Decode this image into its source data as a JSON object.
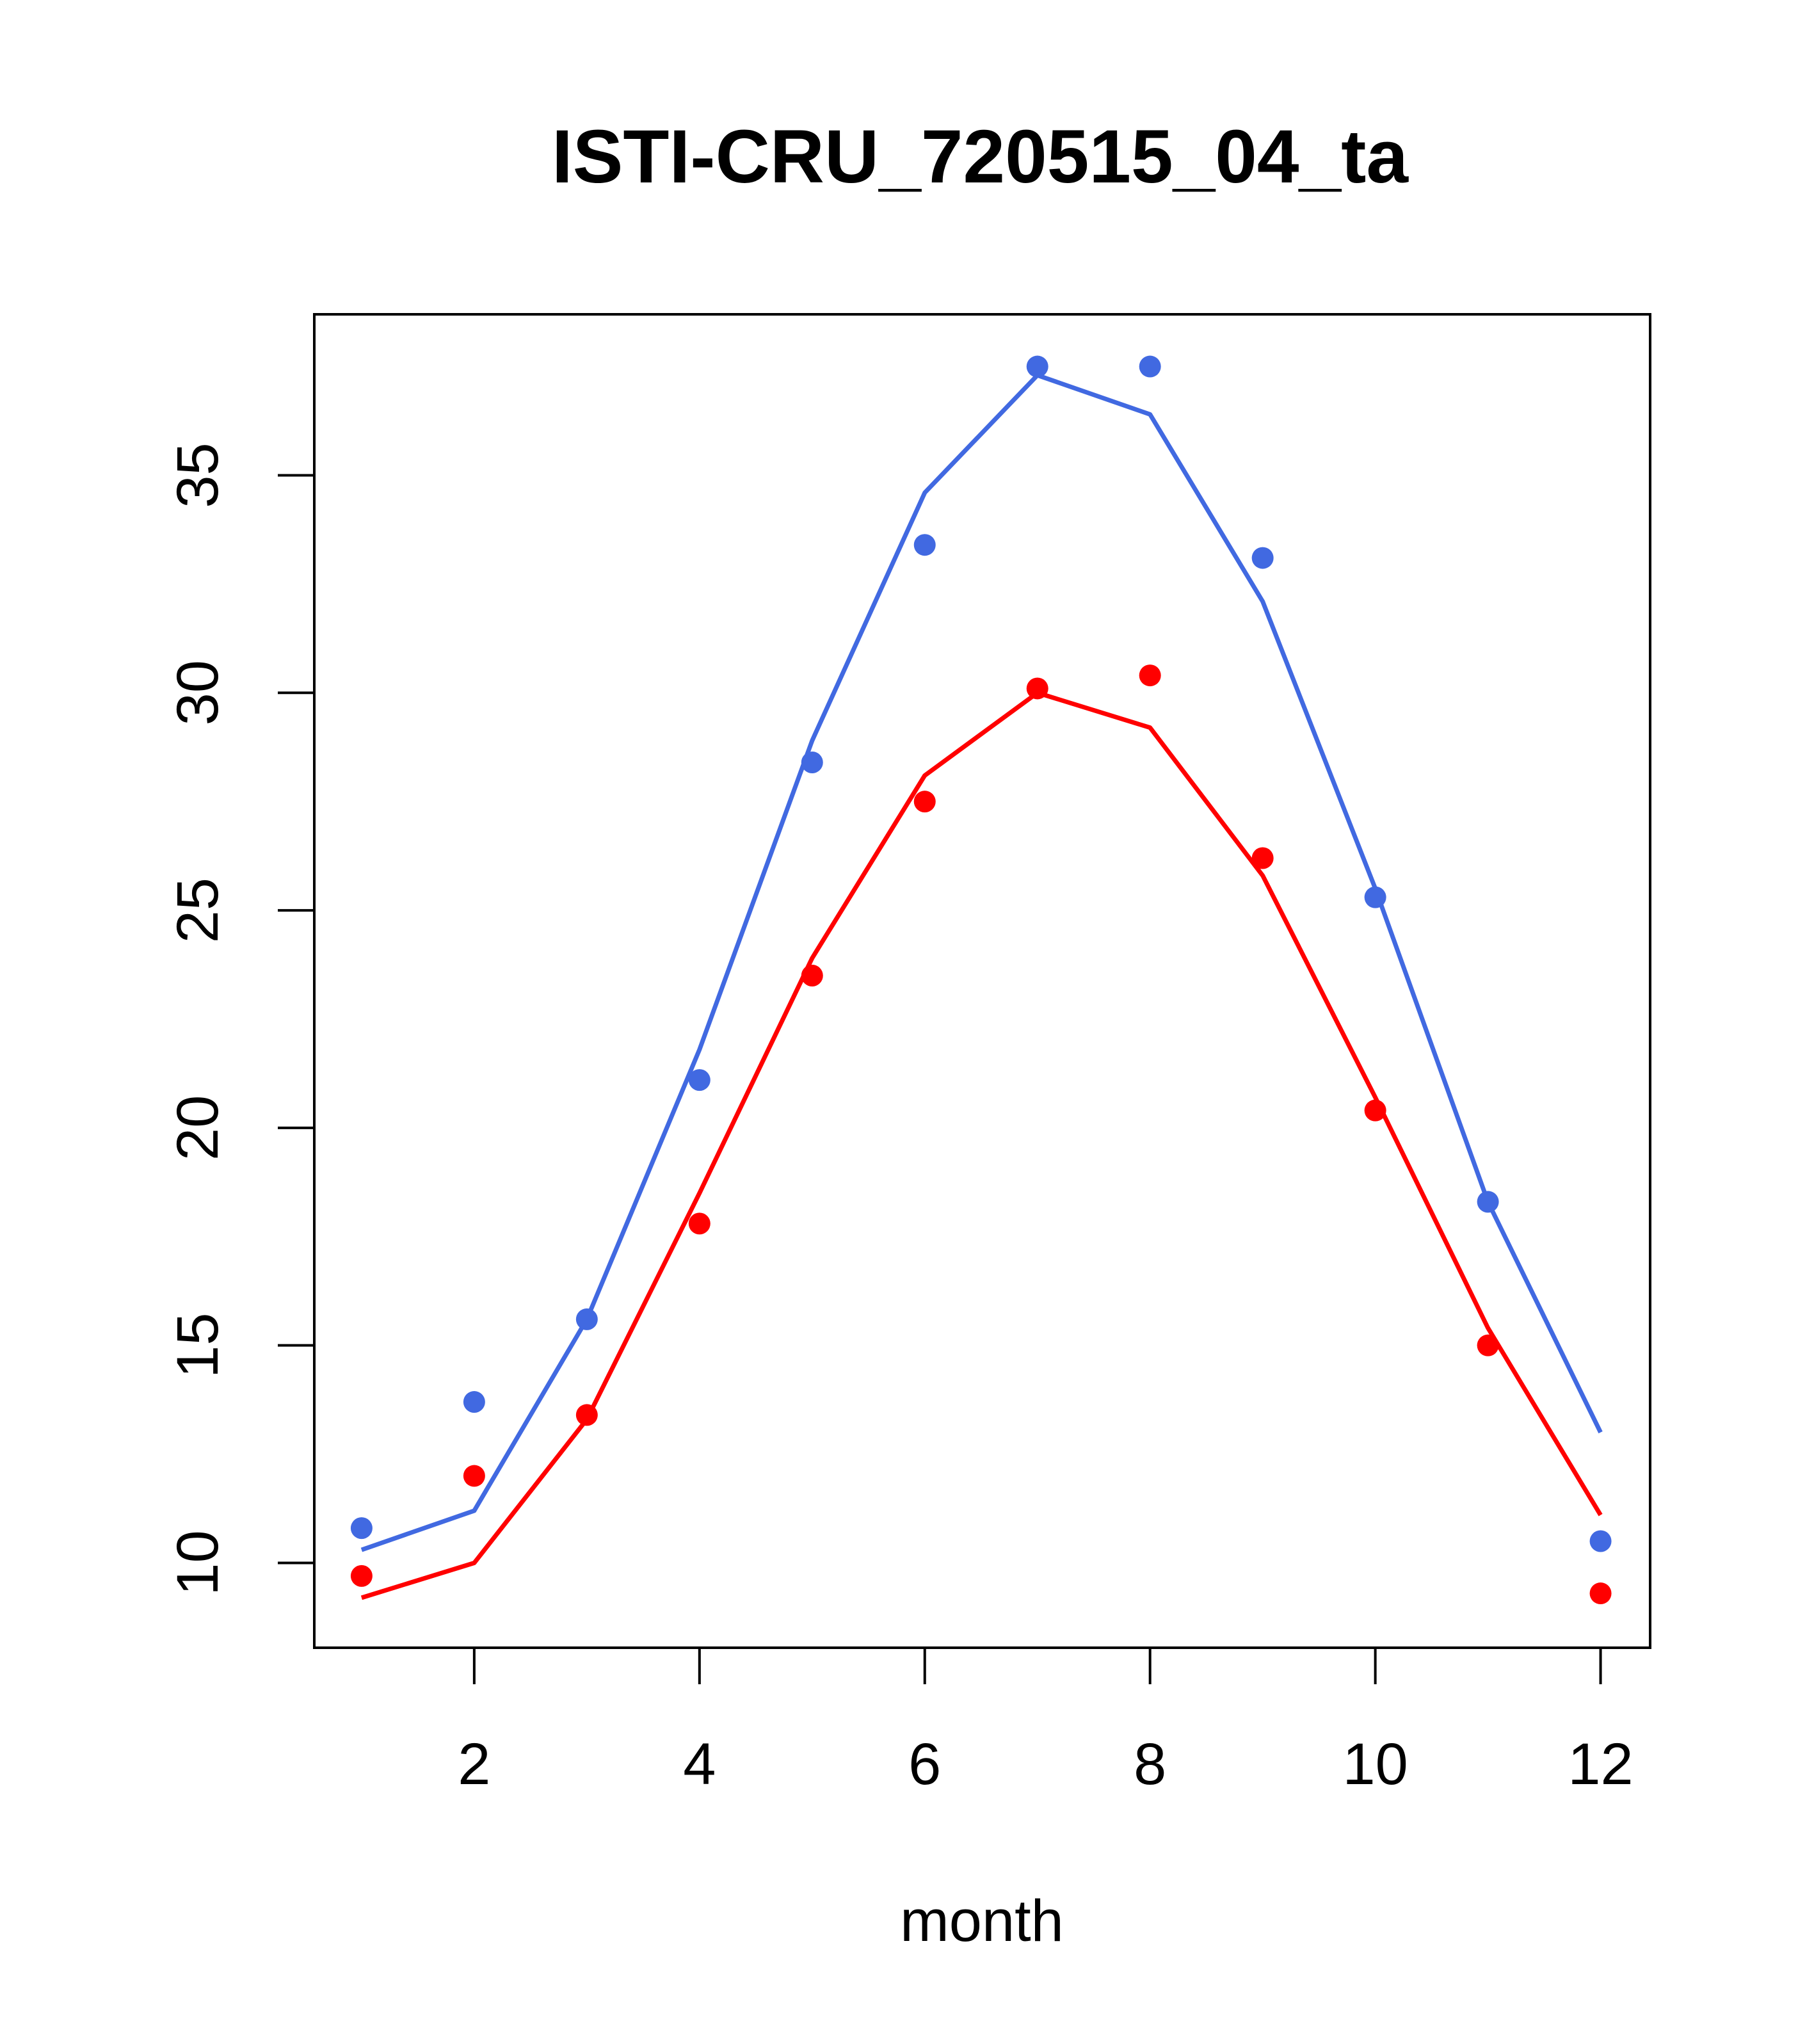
{
  "chart_data": {
    "type": "line",
    "title": "ISTI-CRU_720515_04_ta",
    "subtitle": "",
    "xlabel": "month",
    "ylabel": "",
    "xlim": [
      0.58,
      12.44
    ],
    "ylim": [
      8.05,
      38.7
    ],
    "x_ticks": [
      2,
      4,
      6,
      8,
      10,
      12
    ],
    "y_ticks": [
      10,
      15,
      20,
      25,
      30,
      35
    ],
    "grid": false,
    "legend": "none",
    "x": [
      1,
      2,
      3,
      4,
      5,
      6,
      7,
      8,
      9,
      10,
      11,
      12
    ],
    "series": [
      {
        "color": "#4169e1",
        "points": [
          10.8,
          13.7,
          15.6,
          21.1,
          28.4,
          33.4,
          37.5,
          37.5,
          33.1,
          25.3,
          18.3,
          10.5
        ],
        "line": [
          10.3,
          11.2,
          15.6,
          21.8,
          28.9,
          34.6,
          37.3,
          36.4,
          32.1,
          25.5,
          18.3,
          13.0
        ]
      },
      {
        "color": "#ff0000",
        "points": [
          9.7,
          12.0,
          13.4,
          17.8,
          23.5,
          27.5,
          30.1,
          30.4,
          26.2,
          20.4,
          15.0,
          9.3
        ],
        "line": [
          9.2,
          10.0,
          13.3,
          18.5,
          23.9,
          28.1,
          30.0,
          29.2,
          25.8,
          20.7,
          15.4,
          11.1
        ]
      }
    ]
  }
}
